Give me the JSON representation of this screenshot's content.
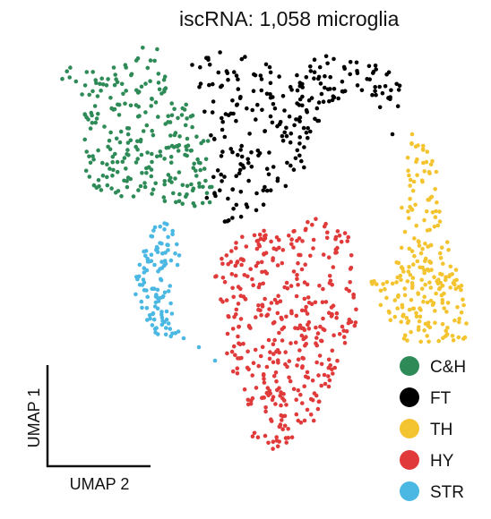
{
  "chart_data": {
    "type": "scatter",
    "title": "iscRNA: 1,058 microglia",
    "xlabel": "UMAP 2",
    "ylabel": "UMAP 1",
    "grid": false,
    "legend_position": "bottom-right",
    "series": [
      {
        "name": "C&H",
        "color": "#2e8b57"
      },
      {
        "name": "FT",
        "color": "#000000"
      },
      {
        "name": "TH",
        "color": "#f4c430"
      },
      {
        "name": "HY",
        "color": "#e03a3a"
      },
      {
        "name": "STR",
        "color": "#4ab8e3"
      }
    ]
  }
}
